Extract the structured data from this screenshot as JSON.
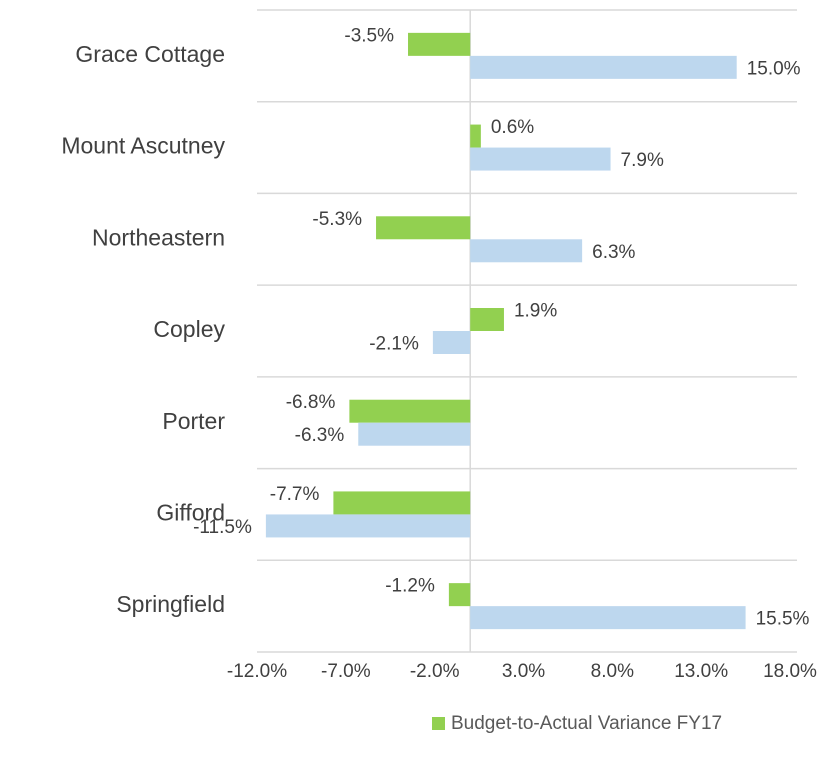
{
  "chart_data": {
    "type": "bar",
    "orientation": "horizontal",
    "categories": [
      "Grace Cottage",
      "Mount Ascutney",
      "Northeastern",
      "Copley",
      "Porter",
      "Gifford",
      "Springfield"
    ],
    "series": [
      {
        "name": "Budget-to-Actual Variance FY17",
        "color": "#92d050",
        "values": [
          -3.5,
          0.6,
          -5.3,
          1.9,
          -6.8,
          -7.7,
          -1.2
        ],
        "value_labels": [
          "-3.5%",
          "0.6%",
          "-5.3%",
          "1.9%",
          "-6.8%",
          "-7.7%",
          "-1.2%"
        ]
      },
      {
        "color": "#bdd7ee",
        "values": [
          15.0,
          7.9,
          6.3,
          -2.1,
          -6.3,
          -11.5,
          15.5
        ],
        "value_labels": [
          "15.0%",
          "7.9%",
          "6.3%",
          "-2.1%",
          "-6.3%",
          "-11.5%",
          "15.5%"
        ]
      }
    ],
    "xlim": [
      -12,
      18
    ],
    "xticks": [
      {
        "value": -12,
        "label": "-12.0%"
      },
      {
        "value": -7,
        "label": "-7.0%"
      },
      {
        "value": -2,
        "label": "-2.0%"
      },
      {
        "value": 3,
        "label": "3.0%"
      },
      {
        "value": 8,
        "label": "8.0%"
      },
      {
        "value": 13,
        "label": "13.0%"
      },
      {
        "value": 18,
        "label": "18.0%"
      }
    ],
    "legend": "bottom-right"
  }
}
